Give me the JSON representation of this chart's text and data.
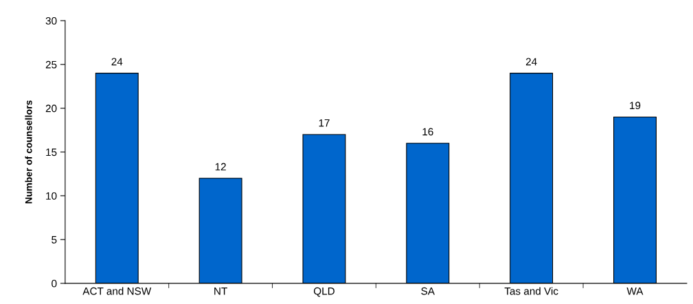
{
  "chart_data": {
    "type": "bar",
    "ylabel": "Number of counsellors",
    "categories": [
      "ACT and NSW",
      "NT",
      "QLD",
      "SA",
      "Tas and Vic",
      "WA"
    ],
    "values": [
      24,
      12,
      17,
      16,
      24,
      19
    ],
    "color": "#0066cc",
    "ylim": [
      0,
      30
    ],
    "yticks": [
      0,
      5,
      10,
      15,
      20,
      25,
      30
    ],
    "grid": false,
    "data_labels": true
  }
}
